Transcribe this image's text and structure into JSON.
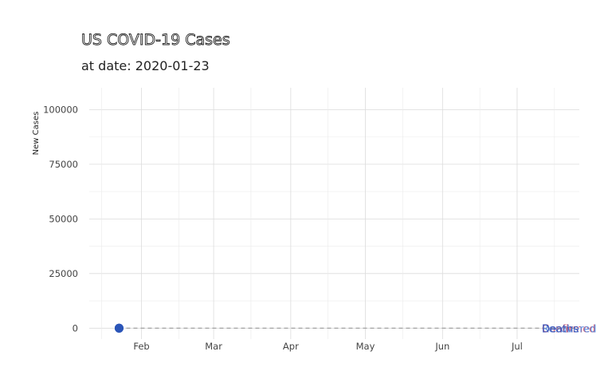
{
  "chart_data": {
    "type": "scatter",
    "title": "US COVID-19 Cases",
    "subtitle": "at date: 2020-01-23",
    "xlabel": "",
    "ylabel": "New Cases",
    "xlim": [
      "2020-01-11",
      "2020-07-26"
    ],
    "ylim": [
      -5000,
      110000
    ],
    "x_ticks": [
      {
        "date": "2020-02-01",
        "label": "Feb"
      },
      {
        "date": "2020-03-01",
        "label": "Mar"
      },
      {
        "date": "2020-04-01",
        "label": "Apr"
      },
      {
        "date": "2020-05-01",
        "label": "May"
      },
      {
        "date": "2020-06-01",
        "label": "Jun"
      },
      {
        "date": "2020-07-01",
        "label": "Jul"
      }
    ],
    "y_ticks": [
      0,
      25000,
      50000,
      75000,
      100000
    ],
    "grid": true,
    "reference_line": {
      "y": 0,
      "style": "dashed",
      "color": "#a8a8a8"
    },
    "series": [
      {
        "name": "Confirmed",
        "color": "#e05a6a",
        "points": [
          {
            "x": "2020-01-23",
            "y": 0
          }
        ]
      },
      {
        "name": "Deaths",
        "color": "#3a53b8",
        "points": [
          {
            "x": "2020-01-23",
            "y": 0
          }
        ]
      },
      {
        "name": "Recovered",
        "color": "#5e8fe0",
        "points": [
          {
            "x": "2020-01-23",
            "y": 0
          }
        ]
      }
    ],
    "marker_color": "#2b55b8",
    "end_labels": [
      {
        "text": "Confirmed",
        "color": "#e05a6a"
      },
      {
        "text": "Recovered",
        "color": "#5e8fe0"
      },
      {
        "text": "Deaths",
        "color": "#3a53b8"
      }
    ]
  }
}
